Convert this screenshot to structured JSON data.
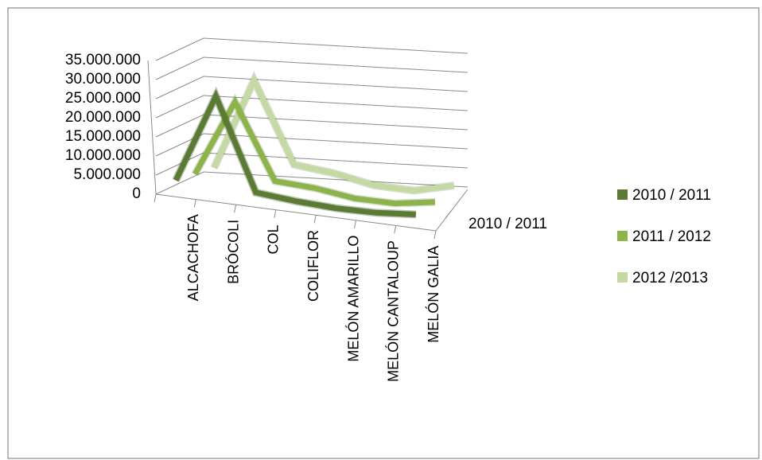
{
  "chart_data": {
    "type": "line",
    "title": "",
    "xlabel": "",
    "ylabel": "",
    "ylim": [
      0,
      35000000
    ],
    "y_ticks": [
      "35.000.000",
      "30.000.000",
      "25.000.000",
      "20.000.000",
      "15.000.000",
      "10.000.000",
      "5.000.000",
      "0"
    ],
    "categories": [
      "ALCACHOFA",
      "BRÓCOLI",
      "COL",
      "COLIFLOR",
      "MELÓN AMARILLO",
      "MELÓN CANTALOUP",
      "MELÓN GALIA"
    ],
    "depth_label": "2010 / 2011",
    "series": [
      {
        "name": "2010 / 2011",
        "color": "#5b7a33",
        "values": [
          2000000,
          28000000,
          1500000,
          500000,
          0,
          200000,
          1200000
        ]
      },
      {
        "name": "2011 / 2012",
        "color": "#8db34b",
        "values": [
          1500000,
          24000000,
          2500000,
          2000000,
          500000,
          600000,
          2500000
        ]
      },
      {
        "name": "2012 / 2013",
        "color": "#c5d9a3",
        "values": [
          1000000,
          28000000,
          5000000,
          4000000,
          2000000,
          2000000,
          5000000
        ]
      }
    ],
    "legend": {
      "position": "right",
      "entries": [
        "2010 / 2011",
        "2011 / 2012",
        "2012 /2013"
      ]
    },
    "grid": true,
    "three_d": true
  }
}
